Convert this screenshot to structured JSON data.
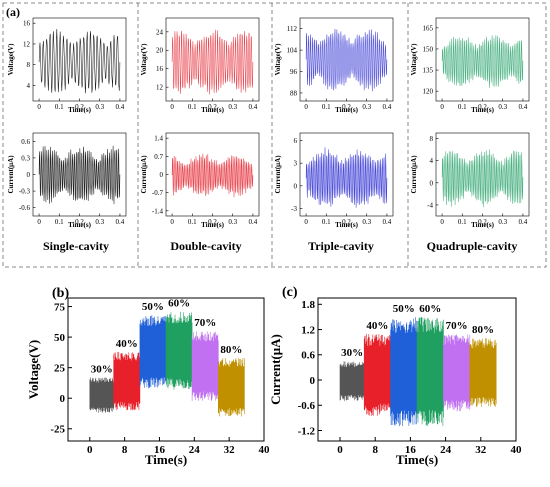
{
  "panel_labels": {
    "a": "(a)",
    "b": "(b)",
    "c": "(c)"
  },
  "cavity_labels": [
    "Single-cavity",
    "Double-cavity",
    "Triple-cavity",
    "Quadruple-cavity"
  ],
  "small_axis_labels": {
    "time": "Time(s)",
    "voltage": "Voltage(V)",
    "current": "Current(μA)"
  },
  "colors": {
    "single": "#1a1a1a",
    "double": "#e8404a",
    "triple": "#4646d8",
    "quadruple": "#48b080",
    "frame": "#777777"
  },
  "chart_data": [
    {
      "type": "line",
      "panel": "(a) Single-cavity voltage",
      "ylabel": "Voltage(V)",
      "xlabel": "Time(s)",
      "xlim": [
        -0.03,
        0.43
      ],
      "xticks": [
        0.0,
        0.1,
        0.2,
        0.3,
        0.4
      ],
      "ylim": [
        1,
        17
      ],
      "yticks": [
        4,
        8,
        12,
        16
      ],
      "series": [
        {
          "values_range": [
            2,
            15
          ],
          "approx_frequency_hz": 60
        }
      ]
    },
    {
      "type": "line",
      "panel": "(a) Double-cavity voltage",
      "ylabel": "Voltage(V)",
      "xlabel": "Time(s)",
      "xlim": [
        -0.03,
        0.43
      ],
      "xticks": [
        0.0,
        0.1,
        0.2,
        0.3,
        0.4
      ],
      "ylim": [
        9,
        27
      ],
      "yticks": [
        12,
        16,
        20,
        24
      ],
      "series": [
        {
          "values_range": [
            10,
            25
          ],
          "approx_frequency_hz": 90
        }
      ]
    },
    {
      "type": "line",
      "panel": "(a) Triple-cavity voltage",
      "ylabel": "Voltage(V)",
      "xlabel": "Time(s)",
      "xlim": [
        -0.03,
        0.43
      ],
      "xticks": [
        0.0,
        0.1,
        0.2,
        0.3,
        0.4
      ],
      "ylim": [
        85,
        116
      ],
      "yticks": [
        88,
        96,
        104,
        112
      ],
      "series": [
        {
          "values_range": [
            88,
            113
          ],
          "approx_frequency_hz": 100
        }
      ]
    },
    {
      "type": "line",
      "panel": "(a) Quadruple-cavity voltage",
      "ylabel": "Voltage(V)",
      "xlabel": "Time(s)",
      "xlim": [
        -0.03,
        0.43
      ],
      "xticks": [
        0.0,
        0.1,
        0.2,
        0.3,
        0.4
      ],
      "ylim": [
        113,
        172
      ],
      "yticks": [
        120,
        135,
        150,
        165
      ],
      "series": [
        {
          "values_range": [
            121,
            162
          ],
          "approx_frequency_hz": 110
        }
      ]
    },
    {
      "type": "line",
      "panel": "(a) Single-cavity current",
      "ylabel": "Current(μA)",
      "xlabel": "Time(s)",
      "xlim": [
        -0.03,
        0.43
      ],
      "xticks": [
        0.0,
        0.1,
        0.2,
        0.3,
        0.4
      ],
      "ylim": [
        -0.75,
        0.75
      ],
      "yticks": [
        -0.6,
        -0.3,
        0.0,
        0.3,
        0.6
      ],
      "series": [
        {
          "values_range": [
            -0.55,
            0.55
          ],
          "approx_frequency_hz": 110
        }
      ]
    },
    {
      "type": "line",
      "panel": "(a) Double-cavity current",
      "ylabel": "Current(μA)",
      "xlabel": "Time(s)",
      "xlim": [
        -0.03,
        0.43
      ],
      "xticks": [
        0.0,
        0.1,
        0.2,
        0.3,
        0.4
      ],
      "ylim": [
        -1.6,
        1.6
      ],
      "yticks": [
        -1.4,
        -0.7,
        0.0,
        0.7,
        1.4
      ],
      "series": [
        {
          "values_range": [
            -0.9,
            0.85
          ],
          "approx_frequency_hz": 120
        }
      ]
    },
    {
      "type": "line",
      "panel": "(a) Triple-cavity current",
      "ylabel": "Current(μA)",
      "xlabel": "Time(s)",
      "xlim": [
        -0.03,
        0.43
      ],
      "xticks": [
        0.0,
        0.1,
        0.2,
        0.3,
        0.4
      ],
      "ylim": [
        -4,
        7
      ],
      "yticks": [
        -3,
        0,
        3,
        6
      ],
      "series": [
        {
          "values_range": [
            -3.2,
            5.2
          ],
          "approx_frequency_hz": 120
        }
      ]
    },
    {
      "type": "line",
      "panel": "(a) Quadruple-cavity current",
      "ylabel": "Current(μA)",
      "xlabel": "Time(s)",
      "xlim": [
        -0.03,
        0.43
      ],
      "xticks": [
        0.0,
        0.1,
        0.2,
        0.3,
        0.4
      ],
      "ylim": [
        -6,
        9
      ],
      "yticks": [
        -4,
        0,
        4,
        8
      ],
      "series": [
        {
          "values_range": [
            -4.5,
            6.5
          ],
          "approx_frequency_hz": 120
        }
      ]
    },
    {
      "type": "line",
      "panel": "(b)",
      "xlabel": "Time(s)",
      "ylabel": "Voltage(V)",
      "xlim": [
        -5,
        40
      ],
      "xticks": [
        0,
        8,
        16,
        24,
        32,
        40
      ],
      "ylim": [
        -35,
        82
      ],
      "yticks": [
        -25,
        0,
        25,
        50,
        75
      ],
      "segments": [
        {
          "label": "30%",
          "color": "#555555",
          "x_range": [
            0,
            5.5
          ],
          "y_range": [
            -12,
            17
          ]
        },
        {
          "label": "40%",
          "color": "#e8202a",
          "x_range": [
            5.5,
            11.5
          ],
          "y_range": [
            -10,
            38
          ]
        },
        {
          "label": "50%",
          "color": "#1f5fd8",
          "x_range": [
            11.5,
            17.5
          ],
          "y_range": [
            8,
            68
          ]
        },
        {
          "label": "60%",
          "color": "#20a060",
          "x_range": [
            17.5,
            23.5
          ],
          "y_range": [
            7,
            71
          ]
        },
        {
          "label": "70%",
          "color": "#c070f0",
          "x_range": [
            23.5,
            29.5
          ],
          "y_range": [
            -3,
            55
          ]
        },
        {
          "label": "80%",
          "color": "#c09000",
          "x_range": [
            29.5,
            35.5
          ],
          "y_range": [
            -15,
            33
          ]
        }
      ]
    },
    {
      "type": "line",
      "panel": "(c)",
      "xlabel": "Time(s)",
      "ylabel": "Current(μA)",
      "xlim": [
        -5,
        40
      ],
      "xticks": [
        0,
        8,
        16,
        24,
        32,
        40
      ],
      "ylim": [
        -1.45,
        1.95
      ],
      "yticks": [
        -1.2,
        -0.6,
        0.0,
        0.6,
        1.2,
        1.8
      ],
      "segments": [
        {
          "label": "30%",
          "color": "#555555",
          "x_range": [
            0,
            5.5
          ],
          "y_range": [
            -0.5,
            0.45
          ]
        },
        {
          "label": "40%",
          "color": "#e8202a",
          "x_range": [
            5.5,
            11.5
          ],
          "y_range": [
            -0.85,
            1.1
          ]
        },
        {
          "label": "50%",
          "color": "#1f5fd8",
          "x_range": [
            11.5,
            17.5
          ],
          "y_range": [
            -1.1,
            1.5
          ]
        },
        {
          "label": "60%",
          "color": "#20a060",
          "x_range": [
            17.5,
            23.5
          ],
          "y_range": [
            -1.1,
            1.5
          ]
        },
        {
          "label": "70%",
          "color": "#c070f0",
          "x_range": [
            23.5,
            29.5
          ],
          "y_range": [
            -0.75,
            1.1
          ]
        },
        {
          "label": "80%",
          "color": "#c09000",
          "x_range": [
            29.5,
            35.5
          ],
          "y_range": [
            -0.65,
            1.0
          ]
        }
      ]
    }
  ]
}
